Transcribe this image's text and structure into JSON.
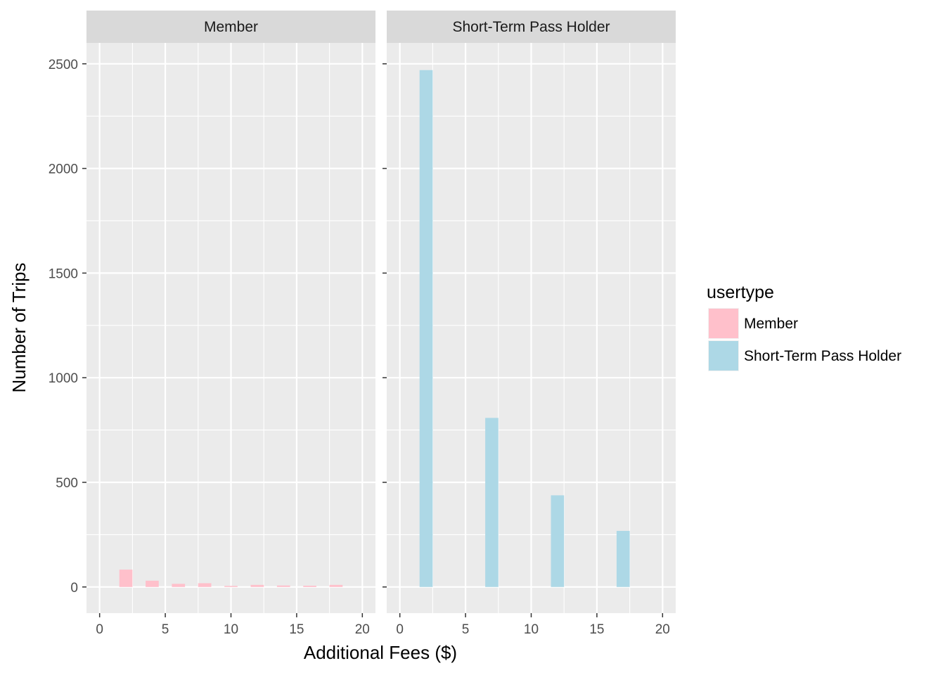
{
  "chart_data": {
    "type": "bar",
    "title": "",
    "xlabel": "Additional Fees ($)",
    "ylabel": "Number of Trips",
    "xlim": [
      -1,
      21
    ],
    "ylim": [
      -125,
      2600
    ],
    "x_ticks": [
      0,
      5,
      10,
      15,
      20
    ],
    "y_ticks": [
      0,
      500,
      1000,
      1500,
      2000,
      2500
    ],
    "grid": true,
    "legend_position": "right",
    "legend_title": "usertype",
    "colors": {
      "Member": "#ffc0cb",
      "Short-Term Pass Holder": "#add8e6"
    },
    "panels": [
      {
        "name": "Member",
        "bar_width": 1,
        "bars": [
          {
            "x": 2,
            "value": 83
          },
          {
            "x": 4,
            "value": 30
          },
          {
            "x": 6,
            "value": 15
          },
          {
            "x": 8,
            "value": 18
          },
          {
            "x": 10,
            "value": 5
          },
          {
            "x": 12,
            "value": 10
          },
          {
            "x": 14,
            "value": 7
          },
          {
            "x": 16,
            "value": 6
          },
          {
            "x": 18,
            "value": 10
          }
        ]
      },
      {
        "name": "Short-Term Pass Holder",
        "bar_width": 1,
        "bars": [
          {
            "x": 2,
            "value": 2470
          },
          {
            "x": 7,
            "value": 808
          },
          {
            "x": 12,
            "value": 438
          },
          {
            "x": 17,
            "value": 268
          }
        ]
      }
    ],
    "legend": [
      {
        "label": "Member",
        "color": "#ffc0cb"
      },
      {
        "label": "Short-Term Pass Holder",
        "color": "#add8e6"
      }
    ]
  }
}
